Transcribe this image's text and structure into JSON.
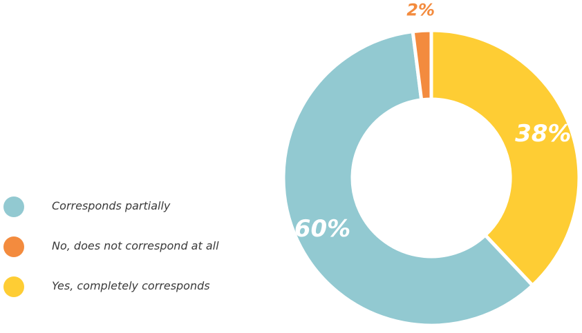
{
  "chart_data": {
    "type": "pie",
    "variant": "donut",
    "title": "",
    "legend_position": "left",
    "start_angle_deg": 0,
    "direction": "clockwise",
    "slices": [
      {
        "name": "Yes, completely corresponds",
        "value": 38,
        "label": "38%",
        "color": "#fecd34",
        "label_color": "#ffffff"
      },
      {
        "name": "Corresponds partially",
        "value": 60,
        "label": "60%",
        "color": "#92c9d1",
        "label_color": "#ffffff"
      },
      {
        "name": "No, does not correspond at all",
        "value": 2,
        "label": "2%",
        "color": "#f38b3e",
        "label_color": "#f38b3e"
      }
    ],
    "legend": [
      {
        "name": "Corresponds partially",
        "color": "#92c9d1"
      },
      {
        "name": "No, does not correspond at all",
        "color": "#f38b3e"
      },
      {
        "name": "Yes, completely corresponds",
        "color": "#fecd34"
      }
    ]
  }
}
